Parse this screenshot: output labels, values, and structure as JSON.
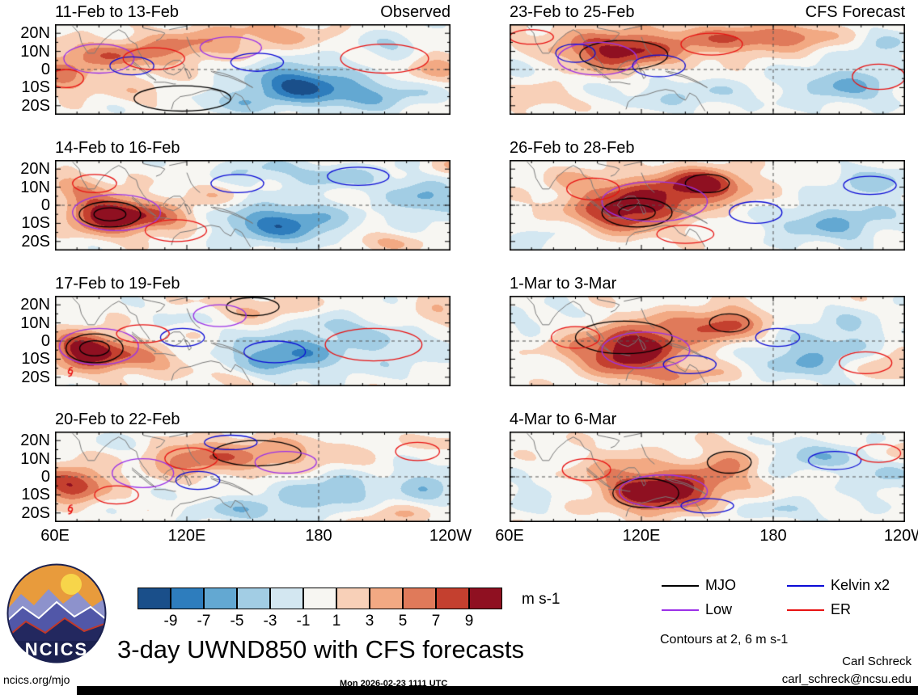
{
  "title": "3-day UWND850 with CFS forecasts",
  "logo_text": "NCICS",
  "credits": {
    "name": "Carl Schreck",
    "email": "carl_schreck@ncsu.edu"
  },
  "footer": {
    "left": "ncics.org/mjo",
    "center": "Mon 2026-02-23 1111 UTC"
  },
  "axes": {
    "y_ticks": [
      "20N",
      "10N",
      "0",
      "10S",
      "20S"
    ],
    "x_ticks": [
      "60E",
      "120E",
      "180",
      "120W"
    ]
  },
  "colorbar": {
    "levels": [
      "-9",
      "-7",
      "-5",
      "-3",
      "-1",
      "1",
      "3",
      "5",
      "7",
      "9"
    ],
    "colors": [
      "#1a4f8a",
      "#2e7dbd",
      "#63a8d2",
      "#a2cde4",
      "#d3e7f1",
      "#f7f6f2",
      "#f8d0b8",
      "#f2a983",
      "#e07a5a",
      "#c4402f",
      "#8f1021"
    ],
    "units": "m s-1"
  },
  "legend": {
    "items": [
      {
        "label": "MJO",
        "color": "#000000"
      },
      {
        "label": "Kelvin x2",
        "color": "#0b0bd6"
      },
      {
        "label": "Low",
        "color": "#9b30e8"
      },
      {
        "label": "ER",
        "color": "#e81212"
      }
    ],
    "note": "Contours at 2, 6 m s-1"
  },
  "chart_data": {
    "type": "heatmap",
    "variable": "UWND850 anomaly",
    "units": "m s-1",
    "column_labels": [
      "Observed",
      "CFS Forecast"
    ],
    "x_range_deg": [
      60,
      240
    ],
    "y_range_deg": [
      -25,
      25
    ],
    "x_ticks": [
      "60E",
      "120E",
      "180",
      "120W"
    ],
    "x_tick_lons": [
      60,
      120,
      180,
      240
    ],
    "y_ticks": [
      "20N",
      "10N",
      "0",
      "10S",
      "20S"
    ],
    "y_tick_lats": [
      20,
      10,
      0,
      -10,
      -20
    ],
    "fill_levels": [
      -9,
      -7,
      -5,
      -3,
      -1,
      1,
      3,
      5,
      7,
      9
    ],
    "contour_levels": [
      2,
      6
    ],
    "contour_colors": {
      "MJO": "#000000",
      "Kelvin": "#0b0bd6",
      "Low": "#9b30e8",
      "ER": "#e81212"
    },
    "panels": [
      {
        "title": "11-Feb to 13-Feb",
        "corner_label": "Observed",
        "seed": 1,
        "blobs": [
          [
            90,
            8,
            22,
            6,
            6
          ],
          [
            64,
            -4,
            10,
            7,
            5
          ],
          [
            120,
            14,
            14,
            5,
            3
          ],
          [
            152,
            19,
            22,
            6,
            4
          ],
          [
            170,
            -8,
            16,
            8,
            -9
          ],
          [
            205,
            -14,
            18,
            6,
            -5
          ],
          [
            140,
            -18,
            14,
            5,
            -3
          ],
          [
            232,
            3,
            10,
            7,
            4
          ],
          [
            215,
            12,
            14,
            6,
            -3
          ],
          [
            100,
            -12,
            12,
            5,
            2
          ]
        ],
        "contours": [
          [
            "MJO",
            118,
            -16,
            22,
            7,
            1
          ],
          [
            "Low",
            80,
            6,
            16,
            8,
            1
          ],
          [
            "Low",
            140,
            12,
            14,
            6,
            1
          ],
          [
            "Kelvin",
            152,
            4,
            12,
            5,
            1
          ],
          [
            "Kelvin",
            95,
            2,
            10,
            5,
            1
          ],
          [
            "ER",
            105,
            6,
            14,
            6,
            1
          ],
          [
            "ER",
            210,
            6,
            20,
            8,
            1
          ],
          [
            "ER",
            65,
            -5,
            8,
            5,
            1
          ]
        ]
      },
      {
        "title": "14-Feb to 16-Feb",
        "seed": 2,
        "blobs": [
          [
            84,
            -5,
            13,
            7,
            11
          ],
          [
            108,
            -8,
            14,
            6,
            5
          ],
          [
            70,
            11,
            10,
            5,
            4
          ],
          [
            130,
            5,
            12,
            5,
            2
          ],
          [
            163,
            -10,
            20,
            8,
            -8
          ],
          [
            186,
            16,
            18,
            5,
            -4
          ],
          [
            228,
            4,
            12,
            9,
            -5
          ],
          [
            238,
            21,
            8,
            4,
            3
          ],
          [
            210,
            -20,
            14,
            4,
            3
          ],
          [
            150,
            20,
            12,
            5,
            -3
          ]
        ],
        "contours": [
          [
            "MJO",
            85,
            -5,
            14,
            7,
            2
          ],
          [
            "Low",
            88,
            -4,
            20,
            10,
            1
          ],
          [
            "Kelvin",
            143,
            12,
            12,
            5,
            1
          ],
          [
            "Kelvin",
            198,
            16,
            14,
            5,
            1
          ],
          [
            "ER",
            115,
            -14,
            14,
            6,
            1
          ],
          [
            "ER",
            78,
            12,
            10,
            5,
            1
          ]
        ]
      },
      {
        "title": "17-Feb to 19-Feb",
        "seed": 3,
        "storm": [
          67,
          -17
        ],
        "blobs": [
          [
            74,
            -5,
            11,
            7,
            11
          ],
          [
            98,
            -10,
            14,
            6,
            5
          ],
          [
            150,
            18,
            22,
            6,
            3
          ],
          [
            163,
            -8,
            18,
            8,
            -7
          ],
          [
            213,
            -4,
            18,
            9,
            -3
          ],
          [
            234,
            15,
            9,
            5,
            3
          ],
          [
            120,
            14,
            13,
            5,
            -2
          ],
          [
            185,
            8,
            14,
            6,
            -3
          ],
          [
            140,
            -20,
            12,
            4,
            2
          ]
        ],
        "contours": [
          [
            "MJO",
            78,
            -4,
            13,
            8,
            2
          ],
          [
            "MJO",
            150,
            19,
            12,
            5,
            1
          ],
          [
            "Low",
            80,
            -3,
            18,
            10,
            1
          ],
          [
            "Low",
            135,
            14,
            12,
            6,
            1
          ],
          [
            "Kelvin",
            160,
            -6,
            14,
            6,
            1
          ],
          [
            "Kelvin",
            118,
            2,
            10,
            5,
            1
          ],
          [
            "ER",
            100,
            4,
            12,
            5,
            1
          ],
          [
            "ER",
            205,
            -2,
            22,
            9,
            1
          ]
        ]
      },
      {
        "title": "20-Feb to 22-Feb",
        "seed": 4,
        "storm": [
          67,
          -18
        ],
        "blobs": [
          [
            68,
            -4,
            11,
            7,
            9
          ],
          [
            150,
            12,
            28,
            7,
            5
          ],
          [
            120,
            9,
            13,
            6,
            4
          ],
          [
            148,
            -18,
            18,
            5,
            -4
          ],
          [
            186,
            -8,
            16,
            7,
            -5
          ],
          [
            230,
            -4,
            11,
            8,
            -4
          ],
          [
            214,
            -21,
            13,
            4,
            3
          ],
          [
            95,
            18,
            10,
            4,
            -2
          ],
          [
            240,
            18,
            8,
            5,
            2
          ]
        ],
        "contours": [
          [
            "MJO",
            152,
            13,
            20,
            7,
            1
          ],
          [
            "Low",
            100,
            2,
            14,
            8,
            1
          ],
          [
            "Low",
            165,
            8,
            14,
            6,
            1
          ],
          [
            "Kelvin",
            140,
            19,
            12,
            4,
            1
          ],
          [
            "Kelvin",
            125,
            -2,
            10,
            5,
            1
          ],
          [
            "ER",
            122,
            10,
            12,
            6,
            1
          ],
          [
            "ER",
            88,
            -10,
            10,
            5,
            1
          ],
          [
            "ER",
            225,
            14,
            10,
            5,
            1
          ]
        ]
      },
      {
        "title": "23-Feb to 25-Feb",
        "corner_label": "CFS Forecast",
        "seed": 5,
        "blobs": [
          [
            118,
            14,
            34,
            7,
            6
          ],
          [
            108,
            7,
            14,
            6,
            6
          ],
          [
            172,
            18,
            18,
            5,
            5
          ],
          [
            140,
            -14,
            22,
            6,
            -3
          ],
          [
            213,
            -8,
            18,
            8,
            -5
          ],
          [
            231,
            14,
            11,
            5,
            -3
          ],
          [
            70,
            -16,
            11,
            5,
            3
          ],
          [
            66,
            6,
            8,
            5,
            -2
          ],
          [
            195,
            18,
            12,
            5,
            3
          ]
        ],
        "contours": [
          [
            "MJO",
            112,
            8,
            20,
            8,
            1
          ],
          [
            "Low",
            100,
            6,
            18,
            9,
            1
          ],
          [
            "Kelvin",
            128,
            2,
            12,
            6,
            1
          ],
          [
            "Kelvin",
            90,
            9,
            9,
            5,
            1
          ],
          [
            "ER",
            152,
            14,
            14,
            6,
            1
          ],
          [
            "ER",
            228,
            -4,
            12,
            7,
            1
          ],
          [
            "ER",
            70,
            18,
            10,
            4,
            1
          ]
        ]
      },
      {
        "title": "26-Feb to 28-Feb",
        "seed": 6,
        "blobs": [
          [
            113,
            -4,
            17,
            8,
            9
          ],
          [
            148,
            12,
            13,
            6,
            8
          ],
          [
            128,
            7,
            26,
            8,
            5
          ],
          [
            208,
            -10,
            22,
            8,
            -5
          ],
          [
            226,
            12,
            14,
            6,
            -4
          ],
          [
            76,
            -18,
            11,
            5,
            -2
          ],
          [
            236,
            -20,
            9,
            4,
            2
          ],
          [
            90,
            14,
            10,
            5,
            2
          ]
        ],
        "contours": [
          [
            "MJO",
            118,
            -4,
            16,
            8,
            2
          ],
          [
            "MJO",
            150,
            12,
            10,
            5,
            1
          ],
          [
            "Low",
            126,
            2,
            24,
            11,
            1
          ],
          [
            "Kelvin",
            172,
            -4,
            12,
            6,
            1
          ],
          [
            "Kelvin",
            224,
            11,
            12,
            5,
            1
          ],
          [
            "ER",
            98,
            9,
            12,
            6,
            1
          ],
          [
            "ER",
            140,
            -16,
            13,
            5,
            1
          ]
        ]
      },
      {
        "title": "1-Mar to 3-Mar",
        "seed": 7,
        "blobs": [
          [
            114,
            -8,
            14,
            8,
            10
          ],
          [
            130,
            4,
            18,
            8,
            6
          ],
          [
            160,
            10,
            11,
            6,
            7
          ],
          [
            194,
            -10,
            16,
            8,
            -5
          ],
          [
            214,
            6,
            14,
            8,
            -3
          ],
          [
            234,
            -14,
            9,
            5,
            4
          ],
          [
            76,
            14,
            11,
            5,
            -2
          ],
          [
            140,
            -19,
            16,
            4,
            4
          ],
          [
            90,
            -2,
            10,
            6,
            3
          ]
        ],
        "contours": [
          [
            "MJO",
            112,
            2,
            22,
            9,
            1
          ],
          [
            "MJO",
            160,
            10,
            9,
            5,
            1
          ],
          [
            "Low",
            122,
            -5,
            20,
            10,
            1
          ],
          [
            "Kelvin",
            142,
            -13,
            12,
            5,
            1
          ],
          [
            "Kelvin",
            182,
            2,
            10,
            5,
            1
          ],
          [
            "ER",
            90,
            2,
            11,
            6,
            1
          ],
          [
            "ER",
            222,
            -12,
            12,
            6,
            1
          ]
        ]
      },
      {
        "title": "4-Mar to 6-Mar",
        "seed": 8,
        "blobs": [
          [
            124,
            -10,
            14,
            7,
            10
          ],
          [
            144,
            -5,
            16,
            7,
            6
          ],
          [
            110,
            4,
            14,
            7,
            4
          ],
          [
            160,
            8,
            11,
            6,
            5
          ],
          [
            198,
            11,
            18,
            6,
            -4
          ],
          [
            184,
            -18,
            13,
            4,
            -3
          ],
          [
            230,
            -1,
            10,
            8,
            -3
          ],
          [
            70,
            -10,
            9,
            6,
            -2
          ],
          [
            238,
            14,
            8,
            4,
            3
          ]
        ],
        "contours": [
          [
            "MJO",
            160,
            8,
            10,
            6,
            1
          ],
          [
            "MJO",
            122,
            -9,
            15,
            8,
            1
          ],
          [
            "Low",
            130,
            -8,
            20,
            9,
            1
          ],
          [
            "Kelvin",
            150,
            -16,
            12,
            4,
            1
          ],
          [
            "Kelvin",
            208,
            9,
            12,
            5,
            1
          ],
          [
            "ER",
            95,
            4,
            11,
            6,
            1
          ],
          [
            "ER",
            228,
            13,
            10,
            5,
            1
          ]
        ]
      }
    ]
  }
}
